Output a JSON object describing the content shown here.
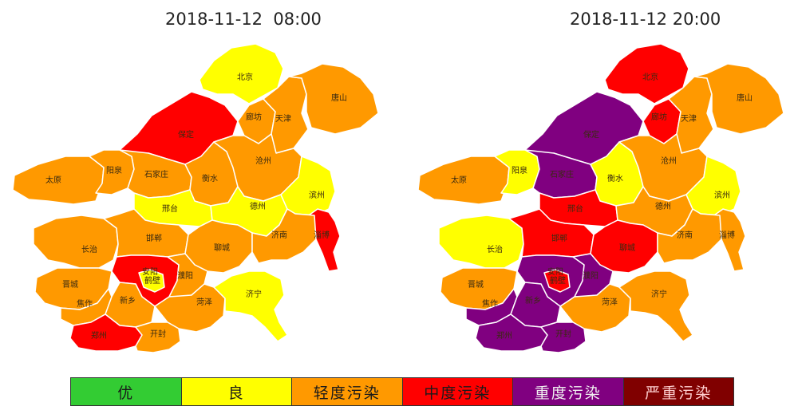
{
  "titles": {
    "left": "2018-11-12  08:00",
    "right": "2018-11-12 20:00"
  },
  "colors": {
    "excellent": "#33cc33",
    "good": "#ffff00",
    "light": "#ff9900",
    "moderate": "#ff0000",
    "heavy": "#800080",
    "severe": "#800000",
    "border": "#ffffff",
    "label": "#3a2a10"
  },
  "cities": {
    "beijing": "北京",
    "baoding": "保定",
    "langfang": "廊坊",
    "tianjin": "天津",
    "tangshan": "唐山",
    "taiyuan": "太原",
    "yangquan": "阳泉",
    "shijiazhuang": "石家庄",
    "hengshui": "衡水",
    "cangzhou": "沧州",
    "xingtai": "邢台",
    "dezhou": "德州",
    "binzhou": "滨州",
    "zibo": "淄博",
    "changzhi": "长治",
    "handan": "邯郸",
    "liaocheng": "聊城",
    "jinan": "济南",
    "anyang": "安阳",
    "hebi": "鹤壁",
    "puyang": "濮阳",
    "jincheng": "晋城",
    "jiaozuo": "焦作",
    "xinxiang": "新乡",
    "heze": "菏泽",
    "jining": "济宁",
    "zhengzhou": "郑州",
    "kaifeng": "开封"
  },
  "maps": {
    "left": {
      "levels": {
        "beijing": "good",
        "baoding": "moderate",
        "langfang": "light",
        "tianjin": "light",
        "tangshan": "light",
        "taiyuan": "light",
        "yangquan": "light",
        "shijiazhuang": "light",
        "hengshui": "light",
        "cangzhou": "light",
        "xingtai": "good",
        "dezhou": "good",
        "binzhou": "good",
        "zibo": "moderate",
        "changzhi": "light",
        "handan": "light",
        "liaocheng": "light",
        "jinan": "light",
        "anyang": "moderate",
        "hebi": "good",
        "puyang": "light",
        "jincheng": "light",
        "jiaozuo": "light",
        "xinxiang": "light",
        "heze": "light",
        "jining": "good",
        "zhengzhou": "moderate",
        "kaifeng": "light"
      }
    },
    "right": {
      "levels": {
        "beijing": "moderate",
        "baoding": "heavy",
        "langfang": "moderate",
        "tianjin": "light",
        "tangshan": "light",
        "taiyuan": "light",
        "yangquan": "good",
        "shijiazhuang": "heavy",
        "hengshui": "good",
        "cangzhou": "light",
        "xingtai": "moderate",
        "dezhou": "light",
        "binzhou": "good",
        "zibo": "light",
        "changzhi": "good",
        "handan": "moderate",
        "liaocheng": "moderate",
        "jinan": "light",
        "anyang": "heavy",
        "hebi": "moderate",
        "puyang": "heavy",
        "jincheng": "light",
        "jiaozuo": "heavy",
        "xinxiang": "heavy",
        "heze": "light",
        "jining": "light",
        "zhengzhou": "heavy",
        "kaifeng": "heavy"
      }
    }
  },
  "legend": [
    {
      "label": "优",
      "level": "excellent"
    },
    {
      "label": "良",
      "level": "good"
    },
    {
      "label": "轻度污染",
      "level": "light"
    },
    {
      "label": "中度污染",
      "level": "moderate"
    },
    {
      "label": "重度污染",
      "level": "heavy"
    },
    {
      "label": "严重污染",
      "level": "severe"
    }
  ]
}
